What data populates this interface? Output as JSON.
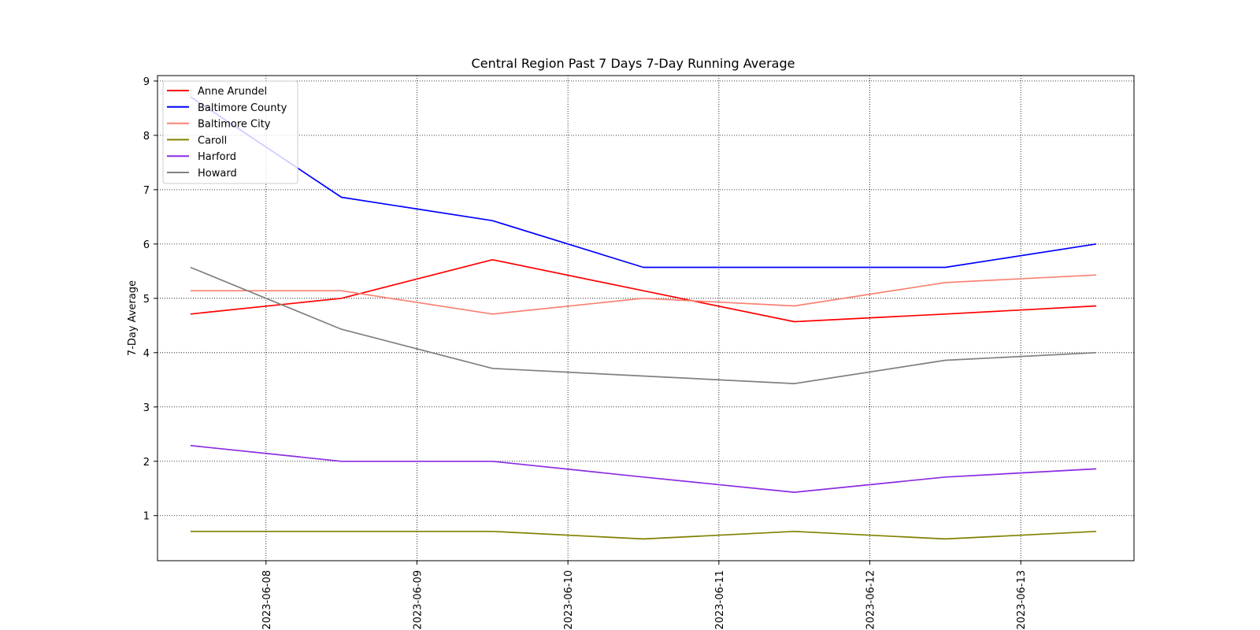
{
  "chart_data": {
    "type": "line",
    "title": "Central Region Past 7 Days 7-Day Running Average",
    "xlabel": "",
    "ylabel": "7-Day Average",
    "x": [
      "2023-06-07 12:00",
      "2023-06-08 12:00",
      "2023-06-09 12:00",
      "2023-06-10 12:00",
      "2023-06-11 12:00",
      "2023-06-12 12:00",
      "2023-06-13 12:00"
    ],
    "xlim": [
      "2023-06-07 06:45",
      "2023-06-13 18:00"
    ],
    "xticks": [
      "2023-06-08",
      "2023-06-09",
      "2023-06-10",
      "2023-06-11",
      "2023-06-12",
      "2023-06-13"
    ],
    "ylim": [
      0.17,
      9.1
    ],
    "yticks": [
      1,
      2,
      3,
      4,
      5,
      6,
      7,
      8,
      9
    ],
    "grid": true,
    "legend_position": "upper-left",
    "series": [
      {
        "name": "Anne Arundel",
        "color": "#ff0000",
        "values": [
          4.71,
          5.0,
          5.71,
          5.14,
          4.57,
          4.71,
          4.86
        ]
      },
      {
        "name": "Baltimore County",
        "color": "#0000ff",
        "values": [
          8.71,
          6.86,
          6.43,
          5.57,
          5.57,
          5.57,
          6.0
        ]
      },
      {
        "name": "Baltimore City",
        "color": "#fa8072",
        "values": [
          5.14,
          5.14,
          4.71,
          5.0,
          4.86,
          5.29,
          5.43
        ]
      },
      {
        "name": "Caroll",
        "color": "#808000",
        "values": [
          0.71,
          0.71,
          0.71,
          0.57,
          0.71,
          0.57,
          0.71
        ]
      },
      {
        "name": "Harford",
        "color": "#8a2be2",
        "values": [
          2.29,
          2.0,
          2.0,
          1.71,
          1.43,
          1.71,
          1.86
        ]
      },
      {
        "name": "Howard",
        "color": "#808080",
        "values": [
          5.57,
          4.43,
          3.71,
          3.57,
          3.43,
          3.86,
          4.0
        ]
      }
    ]
  }
}
